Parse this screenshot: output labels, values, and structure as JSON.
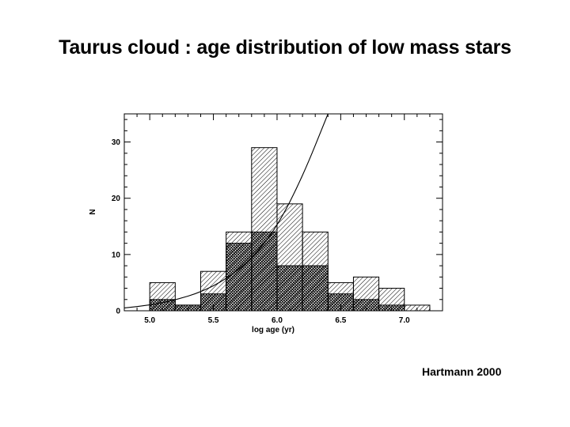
{
  "slide": {
    "title": "Taurus cloud : age distribution of low mass stars",
    "credit": "Hartmann 2000"
  },
  "chart_data": {
    "type": "bar",
    "title": "",
    "xlabel": "log age (yr)",
    "ylabel": "N",
    "xlim": [
      4.8,
      7.3
    ],
    "ylim": [
      0,
      35
    ],
    "x_ticks": [
      5.0,
      5.5,
      6.0,
      6.5,
      7.0
    ],
    "x_tick_labels": [
      "5.0",
      "5.5",
      "6.0",
      "6.5",
      "7.0"
    ],
    "y_ticks": [
      0,
      10,
      20,
      30
    ],
    "y_tick_labels": [
      "0",
      "10",
      "20",
      "30"
    ],
    "grid": false,
    "legend": "none",
    "bin_edges": [
      5.0,
      5.2,
      5.4,
      5.6,
      5.8,
      6.0,
      6.2,
      6.4,
      6.6,
      6.8,
      7.0,
      7.2
    ],
    "series": [
      {
        "values": [
          5,
          1,
          7,
          14,
          29,
          19,
          14,
          5,
          6,
          4,
          1
        ]
      },
      {
        "values": [
          2,
          1,
          3,
          12,
          14,
          8,
          8,
          3,
          2,
          1,
          0
        ]
      }
    ],
    "curve": {
      "x": [
        4.8,
        5.0,
        5.2,
        5.4,
        5.6,
        5.8,
        6.0,
        6.2,
        6.4
      ],
      "y": [
        0.5,
        1.0,
        1.9,
        3.3,
        5.6,
        9.2,
        14.9,
        23.8,
        35
      ]
    }
  }
}
